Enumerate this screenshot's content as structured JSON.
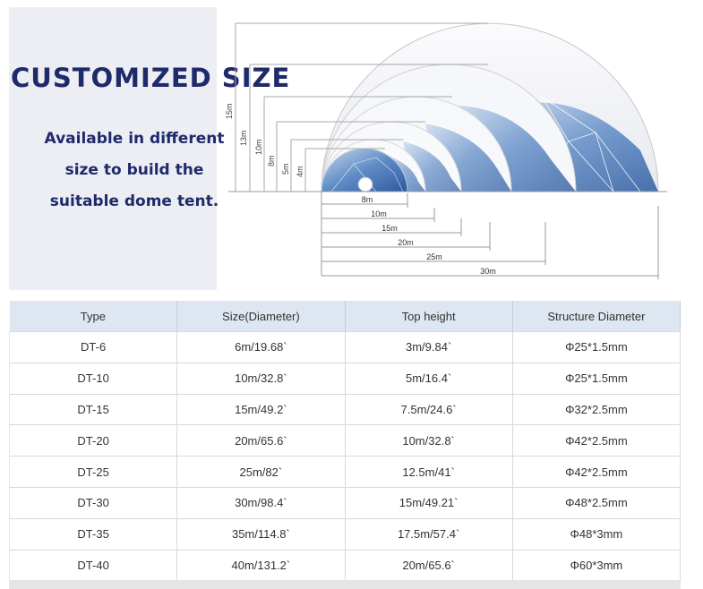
{
  "hero": {
    "title": "CUSTOMIZED SIZE",
    "subtitle_lines": [
      "Available in different",
      "size to build the",
      "suitable dome tent."
    ]
  },
  "diagram": {
    "height_labels": [
      "15m",
      "13m",
      "10m",
      "8m",
      "5m",
      "4m"
    ],
    "width_labels": [
      "8m",
      "10m",
      "15m",
      "20m",
      "25m",
      "30m"
    ]
  },
  "table": {
    "headers": [
      "Type",
      "Size(Diameter)",
      "Top height",
      "Structure Diameter"
    ],
    "rows": [
      [
        "DT-6",
        "6m/19.68`",
        "3m/9.84`",
        "Φ25*1.5mm"
      ],
      [
        "DT-10",
        "10m/32.8`",
        "5m/16.4`",
        "Φ25*1.5mm"
      ],
      [
        "DT-15",
        "15m/49.2`",
        "7.5m/24.6`",
        "Φ32*2.5mm"
      ],
      [
        "DT-20",
        "20m/65.6`",
        "10m/32.8`",
        "Φ42*2.5mm"
      ],
      [
        "DT-25",
        "25m/82`",
        "12.5m/41`",
        "Φ42*2.5mm"
      ],
      [
        "DT-30",
        "30m/98.4`",
        "15m/49.21`",
        "Φ48*2.5mm"
      ],
      [
        "DT-35",
        "35m/114.8`",
        "17.5m/57.4`",
        "Φ48*3mm"
      ],
      [
        "DT-40",
        "40m/131.2`",
        "20m/65.6`",
        "Φ60*3mm"
      ]
    ]
  }
}
